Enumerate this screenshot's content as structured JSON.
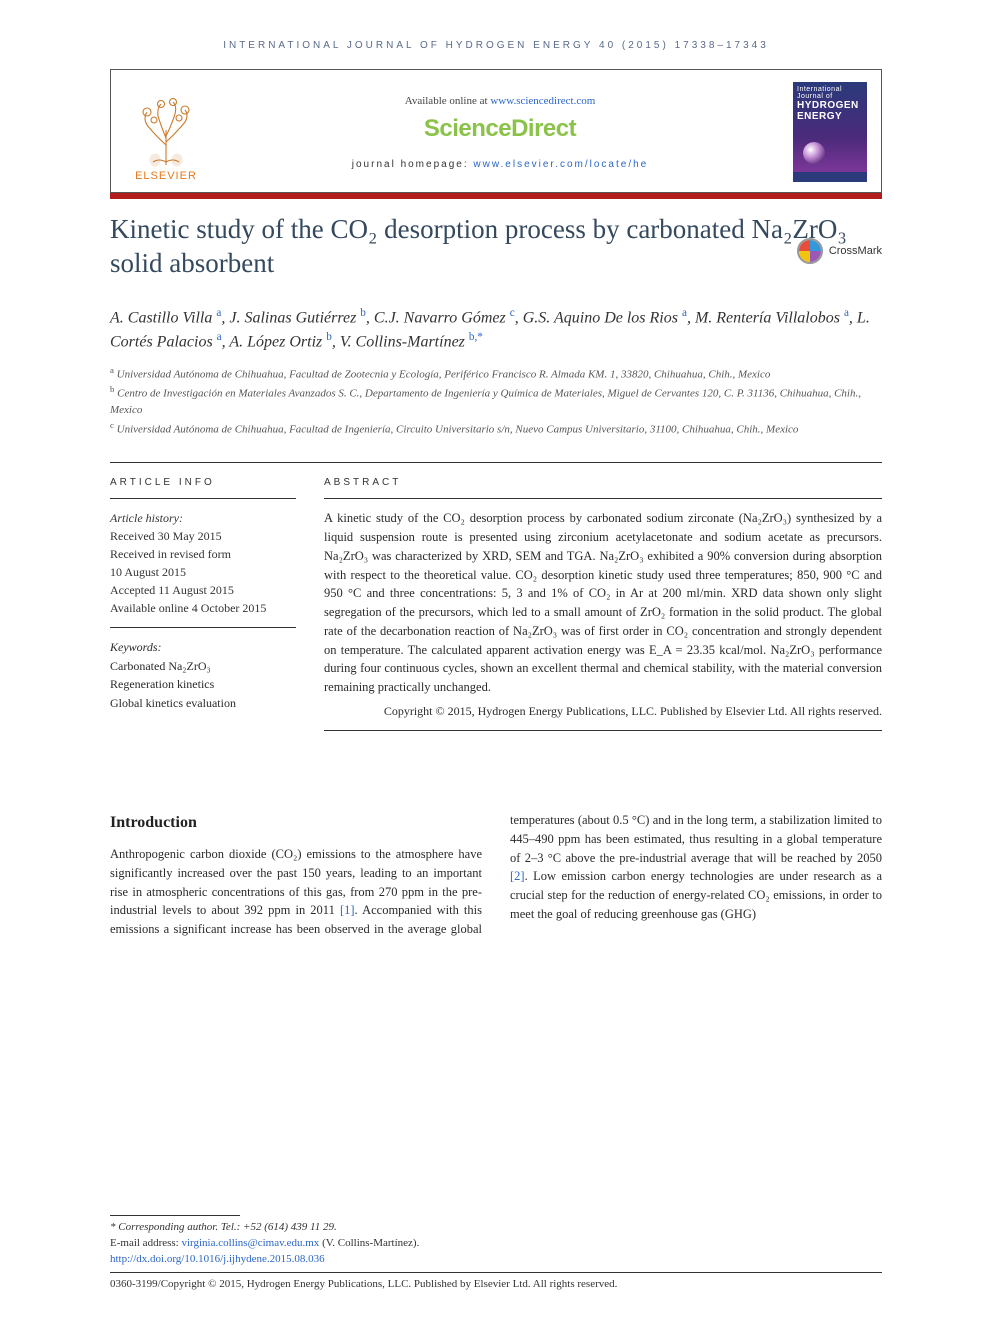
{
  "header": {
    "running_head": "INTERNATIONAL JOURNAL OF HYDROGEN ENERGY 40 (2015) 17338–17343",
    "available_prefix": "Available online at ",
    "available_link": "www.sciencedirect.com",
    "brand": "ScienceDirect",
    "elsevier_word": "ELSEVIER",
    "journal_home_prefix": "journal homepage: ",
    "journal_home_link": "www.elsevier.com/locate/he",
    "cover_line1": "International Journal of",
    "cover_line2": "HYDROGEN",
    "cover_line3": "ENERGY"
  },
  "title": {
    "line": "Kinetic study of the CO₂ desorption process by carbonated Na₂ZrO₃ solid absorbent"
  },
  "crossmark_label": "CrossMark",
  "authors_html": "A. Castillo Villa <span class='sup'>a</span>, J. Salinas Gutiérrez <span class='sup'>b</span>, C.J. Navarro Gómez <span class='sup'>c</span>, G.S. Aquino De los Rios <span class='sup'>a</span>, M. Rentería Villalobos <span class='sup'>a</span>, L. Cortés Palacios <span class='sup'>a</span>, A. López Ortiz <span class='sup'>b</span>, V. Collins-Martínez <span class='sup'>b,</span><span class='sup star'>*</span>",
  "affiliations": [
    {
      "sup": "a",
      "text": "Universidad Autónoma de Chihuahua, Facultad de Zootecnia y Ecología, Periférico Francisco R. Almada KM. 1, 33820, Chihuahua, Chih., Mexico"
    },
    {
      "sup": "b",
      "text": "Centro de Investigación en Materiales Avanzados S. C., Departamento de Ingeniería y Química de Materiales, Miguel de Cervantes 120, C. P. 31136, Chihuahua, Chih., Mexico"
    },
    {
      "sup": "c",
      "text": "Universidad Autónoma de Chihuahua, Facultad de Ingeniería, Circuito Universitario s/n, Nuevo Campus Universitario, 31100, Chihuahua, Chih., Mexico"
    }
  ],
  "info": {
    "head": "ARTICLE INFO",
    "history_label": "Article history:",
    "history_lines": [
      "Received 30 May 2015",
      "Received in revised form",
      "10 August 2015",
      "Accepted 11 August 2015",
      "Available online 4 October 2015"
    ],
    "keywords_label": "Keywords:",
    "keywords": [
      "Carbonated Na₂ZrO₃",
      "Regeneration kinetics",
      "Global kinetics evaluation"
    ]
  },
  "abstract": {
    "head": "ABSTRACT",
    "body": "A kinetic study of the CO₂ desorption process by carbonated sodium zirconate (Na₂ZrO₃) synthesized by a liquid suspension route is presented using zirconium acetylacetonate and sodium acetate as precursors. Na₂ZrO₃ was characterized by XRD, SEM and TGA. Na₂ZrO₃ exhibited a 90% conversion during absorption with respect to the theoretical value. CO₂ desorption kinetic study used three temperatures; 850, 900 °C and 950 °C and three concentrations: 5, 3 and 1% of CO₂ in Ar at 200 ml/min. XRD data shown only slight segregation of the precursors, which led to a small amount of ZrO₂ formation in the solid product. The global rate of the decarbonation reaction of Na₂ZrO₃ was of first order in CO₂ concentration and strongly dependent on temperature. The calculated apparent activation energy was E_A = 23.35 kcal/mol. Na₂ZrO₃ performance during four continuous cycles, shown an excellent thermal and chemical stability, with the material conversion remaining practically unchanged.",
    "copyright": "Copyright © 2015, Hydrogen Energy Publications, LLC. Published by Elsevier Ltd. All rights reserved."
  },
  "intro": {
    "heading": "Introduction",
    "col1": "Anthropogenic carbon dioxide (CO₂) emissions to the atmosphere have significantly increased over the past 150 years, leading to an important rise in atmospheric concentrations of this gas, from 270 ppm in the pre-industrial levels to about 392 ppm in 2011 ",
    "cite1": "[1]",
    "col1_tail": ". Accompanied with this emissions a",
    "col2": "significant increase has been observed in the average global temperatures (about 0.5 °C) and in the long term, a stabilization limited to 445–490 ppm has been estimated, thus resulting in a global temperature of 2–3 °C above the pre-industrial average that will be reached by 2050 ",
    "cite2": "[2]",
    "col2_tail": ". Low emission carbon energy technologies are under research as a crucial step for the reduction of energy-related CO₂ emissions, in order to meet the goal of reducing greenhouse gas (GHG)"
  },
  "footer": {
    "corr": "* Corresponding author. Tel.: +52 (614) 439 11 29.",
    "email_label": "E-mail address: ",
    "email": "virginia.collins@cimav.edu.mx",
    "email_tail": " (V. Collins-Martínez).",
    "doi": "http://dx.doi.org/10.1016/j.ijhydene.2015.08.036",
    "issn_line": "0360-3199/Copyright © 2015, Hydrogen Energy Publications, LLC. Published by Elsevier Ltd. All rights reserved."
  },
  "colors": {
    "link": "#2a66c7",
    "red_bar": "#b11c1c",
    "title": "#34495e",
    "brand_green": "#8bc34a",
    "elsevier_orange": "#e67817"
  }
}
